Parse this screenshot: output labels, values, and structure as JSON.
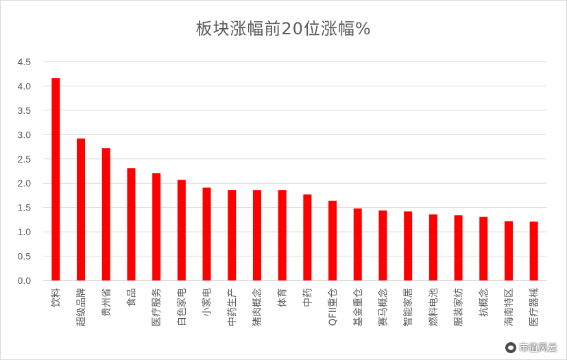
{
  "chart_data": {
    "type": "bar",
    "title": "板块涨幅前20位涨幅%",
    "xlabel": "",
    "ylabel": "",
    "ylim": [
      0,
      4.5
    ],
    "yticks": [
      "0.0",
      "0.5",
      "1.0",
      "1.5",
      "2.0",
      "2.5",
      "3.0",
      "3.5",
      "4.0",
      "4.5"
    ],
    "grid": true,
    "bar_color": "#ff0000",
    "categories": [
      "饮料",
      "超级品牌",
      "贵州省",
      "食品",
      "医疗服务",
      "白色家电",
      "小家电",
      "中药生产",
      "猪肉概念",
      "体育",
      "中药",
      "QFII重仓",
      "基金重仓",
      "赛马概念",
      "智能家居",
      "燃料电池",
      "服装家纺",
      "抗概念",
      "海南特区",
      "医疗器械"
    ],
    "values": [
      4.16,
      2.92,
      2.72,
      2.31,
      2.21,
      2.07,
      1.91,
      1.86,
      1.86,
      1.86,
      1.77,
      1.64,
      1.48,
      1.44,
      1.42,
      1.36,
      1.34,
      1.31,
      1.22,
      1.21
    ]
  },
  "watermark": {
    "text": "市值风云",
    "icon": "wechat-logo-icon"
  }
}
